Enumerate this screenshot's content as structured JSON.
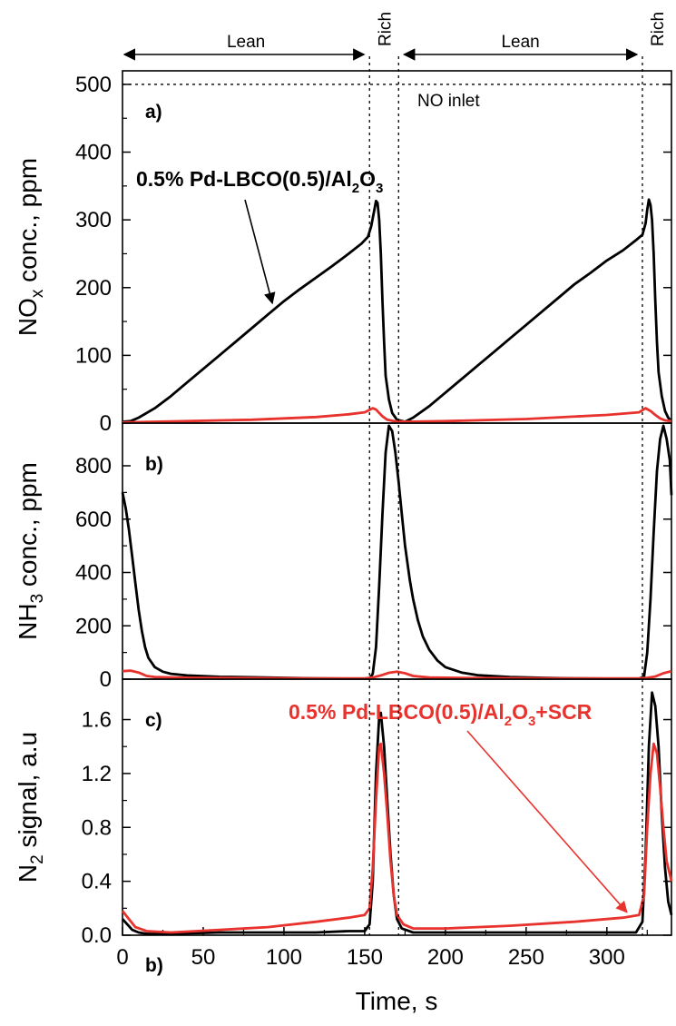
{
  "chart_data": [
    {
      "type": "line",
      "panel_label": "a)",
      "ylabel": {
        "main": "NO",
        "sub": "x",
        "rest": " conc., ppm"
      },
      "xlim": [
        0,
        340
      ],
      "ylim": [
        0,
        520
      ],
      "yticks": [
        0,
        100,
        200,
        300,
        400,
        500
      ],
      "reference_line": {
        "value": 500,
        "label": "NO inlet"
      },
      "annotation": {
        "pre": "0.5% Pd-LBCO(0.5)/Al",
        "sub1": "2",
        "mid": "O",
        "sub2": "3",
        "target": [
          90,
          185
        ]
      },
      "series": [
        {
          "color": "#000000",
          "points": [
            [
              0,
              2
            ],
            [
              5,
              3
            ],
            [
              10,
              8
            ],
            [
              20,
              22
            ],
            [
              30,
              40
            ],
            [
              40,
              60
            ],
            [
              50,
              80
            ],
            [
              60,
              100
            ],
            [
              70,
              120
            ],
            [
              80,
              140
            ],
            [
              90,
              160
            ],
            [
              100,
              180
            ],
            [
              110,
              198
            ],
            [
              120,
              215
            ],
            [
              130,
              232
            ],
            [
              140,
              250
            ],
            [
              148,
              265
            ],
            [
              152,
              275
            ],
            [
              154,
              290
            ],
            [
              156,
              315
            ],
            [
              157,
              328
            ],
            [
              158,
              325
            ],
            [
              159,
              300
            ],
            [
              160,
              250
            ],
            [
              161,
              180
            ],
            [
              162,
              120
            ],
            [
              163,
              70
            ],
            [
              165,
              35
            ],
            [
              167,
              15
            ],
            [
              170,
              5
            ],
            [
              175,
              2
            ],
            [
              180,
              8
            ],
            [
              190,
              25
            ],
            [
              200,
              45
            ],
            [
              210,
              65
            ],
            [
              220,
              85
            ],
            [
              230,
              105
            ],
            [
              240,
              125
            ],
            [
              250,
              145
            ],
            [
              260,
              165
            ],
            [
              270,
              185
            ],
            [
              280,
              205
            ],
            [
              290,
              222
            ],
            [
              300,
              240
            ],
            [
              310,
              255
            ],
            [
              318,
              270
            ],
            [
              322,
              278
            ],
            [
              324,
              295
            ],
            [
              325,
              315
            ],
            [
              326,
              330
            ],
            [
              327,
              322
            ],
            [
              328,
              300
            ],
            [
              329,
              250
            ],
            [
              330,
              180
            ],
            [
              331,
              120
            ],
            [
              332,
              75
            ],
            [
              334,
              40
            ],
            [
              336,
              18
            ],
            [
              338,
              8
            ],
            [
              340,
              3
            ]
          ]
        },
        {
          "color": "#e8322d",
          "points": [
            [
              0,
              1
            ],
            [
              20,
              2
            ],
            [
              40,
              3
            ],
            [
              60,
              4
            ],
            [
              80,
              5
            ],
            [
              100,
              7
            ],
            [
              120,
              9
            ],
            [
              140,
              13
            ],
            [
              150,
              16
            ],
            [
              155,
              22
            ],
            [
              157,
              20
            ],
            [
              159,
              15
            ],
            [
              161,
              10
            ],
            [
              164,
              5
            ],
            [
              168,
              3
            ],
            [
              175,
              2
            ],
            [
              200,
              3
            ],
            [
              250,
              6
            ],
            [
              300,
              12
            ],
            [
              320,
              16
            ],
            [
              324,
              22
            ],
            [
              327,
              18
            ],
            [
              330,
              12
            ],
            [
              333,
              7
            ],
            [
              336,
              4
            ],
            [
              340,
              3
            ]
          ]
        }
      ]
    },
    {
      "type": "line",
      "panel_label": "b)",
      "ylabel": {
        "main": "NH",
        "sub": "3",
        "rest": " conc., ppm"
      },
      "xlim": [
        0,
        340
      ],
      "ylim": [
        0,
        960
      ],
      "yticks": [
        0,
        200,
        400,
        600,
        800
      ],
      "series": [
        {
          "color": "#000000",
          "points": [
            [
              0,
              700
            ],
            [
              2,
              640
            ],
            [
              4,
              560
            ],
            [
              6,
              460
            ],
            [
              8,
              360
            ],
            [
              10,
              260
            ],
            [
              12,
              180
            ],
            [
              14,
              120
            ],
            [
              16,
              80
            ],
            [
              20,
              45
            ],
            [
              25,
              28
            ],
            [
              30,
              20
            ],
            [
              40,
              14
            ],
            [
              60,
              9
            ],
            [
              80,
              7
            ],
            [
              100,
              5
            ],
            [
              120,
              3
            ],
            [
              140,
              2
            ],
            [
              150,
              2
            ],
            [
              153,
              2
            ],
            [
              155,
              20
            ],
            [
              157,
              120
            ],
            [
              159,
              350
            ],
            [
              161,
              620
            ],
            [
              163,
              850
            ],
            [
              165,
              950
            ],
            [
              167,
              930
            ],
            [
              169,
              850
            ],
            [
              171,
              740
            ],
            [
              173,
              620
            ],
            [
              175,
              500
            ],
            [
              178,
              370
            ],
            [
              180,
              300
            ],
            [
              183,
              220
            ],
            [
              186,
              160
            ],
            [
              190,
              110
            ],
            [
              195,
              70
            ],
            [
              200,
              45
            ],
            [
              210,
              25
            ],
            [
              220,
              15
            ],
            [
              240,
              8
            ],
            [
              260,
              5
            ],
            [
              280,
              3
            ],
            [
              300,
              2
            ],
            [
              320,
              2
            ],
            [
              323,
              10
            ],
            [
              325,
              100
            ],
            [
              327,
              300
            ],
            [
              329,
              550
            ],
            [
              331,
              780
            ],
            [
              333,
              900
            ],
            [
              335,
              950
            ],
            [
              337,
              900
            ],
            [
              339,
              820
            ],
            [
              340,
              690
            ]
          ]
        },
        {
          "color": "#e8322d",
          "points": [
            [
              0,
              30
            ],
            [
              5,
              32
            ],
            [
              10,
              25
            ],
            [
              15,
              12
            ],
            [
              20,
              8
            ],
            [
              40,
              5
            ],
            [
              80,
              4
            ],
            [
              120,
              3
            ],
            [
              150,
              3
            ],
            [
              155,
              6
            ],
            [
              160,
              14
            ],
            [
              165,
              24
            ],
            [
              170,
              28
            ],
            [
              175,
              22
            ],
            [
              180,
              12
            ],
            [
              190,
              6
            ],
            [
              220,
              4
            ],
            [
              280,
              3
            ],
            [
              320,
              3
            ],
            [
              325,
              5
            ],
            [
              330,
              10
            ],
            [
              335,
              22
            ],
            [
              340,
              30
            ]
          ]
        }
      ]
    },
    {
      "type": "line",
      "panel_label": "c)",
      "ylabel": {
        "main": "N",
        "sub": "2",
        "rest": " signal, a.u"
      },
      "xlabel": "Time, s",
      "xlim": [
        0,
        340
      ],
      "ylim": [
        0,
        1.9
      ],
      "yticks": [
        0.0,
        0.4,
        0.8,
        1.2,
        1.6
      ],
      "xticks": [
        0,
        50,
        100,
        150,
        200,
        250,
        300
      ],
      "annotation": {
        "pre": "0.5% Pd-LBCO(0.5)/Al",
        "sub1": "2",
        "mid": "O",
        "sub2": "3",
        "post": "+SCR",
        "target": [
          300,
          0.13
        ]
      },
      "series": [
        {
          "color": "#000000",
          "points": [
            [
              0,
              0.12
            ],
            [
              3,
              0.08
            ],
            [
              6,
              0.04
            ],
            [
              10,
              0.02
            ],
            [
              15,
              0.01
            ],
            [
              30,
              0.01
            ],
            [
              60,
              0.02
            ],
            [
              90,
              0.02
            ],
            [
              120,
              0.02
            ],
            [
              140,
              0.03
            ],
            [
              150,
              0.03
            ],
            [
              153,
              0.08
            ],
            [
              155,
              0.4
            ],
            [
              157,
              1.2
            ],
            [
              159,
              1.62
            ],
            [
              160,
              1.65
            ],
            [
              162,
              1.4
            ],
            [
              164,
              1.0
            ],
            [
              166,
              0.6
            ],
            [
              168,
              0.3
            ],
            [
              170,
              0.12
            ],
            [
              173,
              0.05
            ],
            [
              180,
              0.02
            ],
            [
              200,
              0.02
            ],
            [
              250,
              0.02
            ],
            [
              300,
              0.02
            ],
            [
              318,
              0.02
            ],
            [
              322,
              0.1
            ],
            [
              324,
              0.6
            ],
            [
              326,
              1.4
            ],
            [
              328,
              1.8
            ],
            [
              330,
              1.7
            ],
            [
              332,
              1.4
            ],
            [
              334,
              0.9
            ],
            [
              336,
              0.5
            ],
            [
              338,
              0.25
            ],
            [
              340,
              0.15
            ]
          ]
        },
        {
          "color": "#e8322d",
          "points": [
            [
              0,
              0.18
            ],
            [
              4,
              0.12
            ],
            [
              8,
              0.06
            ],
            [
              15,
              0.03
            ],
            [
              30,
              0.02
            ],
            [
              60,
              0.04
            ],
            [
              90,
              0.06
            ],
            [
              120,
              0.1
            ],
            [
              140,
              0.13
            ],
            [
              150,
              0.15
            ],
            [
              153,
              0.2
            ],
            [
              155,
              0.5
            ],
            [
              157,
              1.0
            ],
            [
              159,
              1.4
            ],
            [
              160,
              1.42
            ],
            [
              162,
              1.2
            ],
            [
              164,
              0.9
            ],
            [
              166,
              0.55
            ],
            [
              168,
              0.3
            ],
            [
              170,
              0.15
            ],
            [
              174,
              0.08
            ],
            [
              180,
              0.05
            ],
            [
              200,
              0.05
            ],
            [
              240,
              0.07
            ],
            [
              280,
              0.1
            ],
            [
              310,
              0.13
            ],
            [
              320,
              0.15
            ],
            [
              323,
              0.3
            ],
            [
              325,
              0.8
            ],
            [
              327,
              1.2
            ],
            [
              329,
              1.42
            ],
            [
              331,
              1.35
            ],
            [
              333,
              1.1
            ],
            [
              335,
              0.8
            ],
            [
              337,
              0.55
            ],
            [
              340,
              0.4
            ]
          ]
        }
      ]
    }
  ],
  "phases": [
    {
      "label": "Lean",
      "x0": 0,
      "x1": 153
    },
    {
      "label": "Rich",
      "x0": 153,
      "x1": 171
    },
    {
      "label": "Lean",
      "x0": 171,
      "x1": 322
    },
    {
      "label": "Rich",
      "x0": 322,
      "x1": 340
    }
  ],
  "dividers": [
    153,
    171,
    322
  ],
  "stray_label": "b)"
}
